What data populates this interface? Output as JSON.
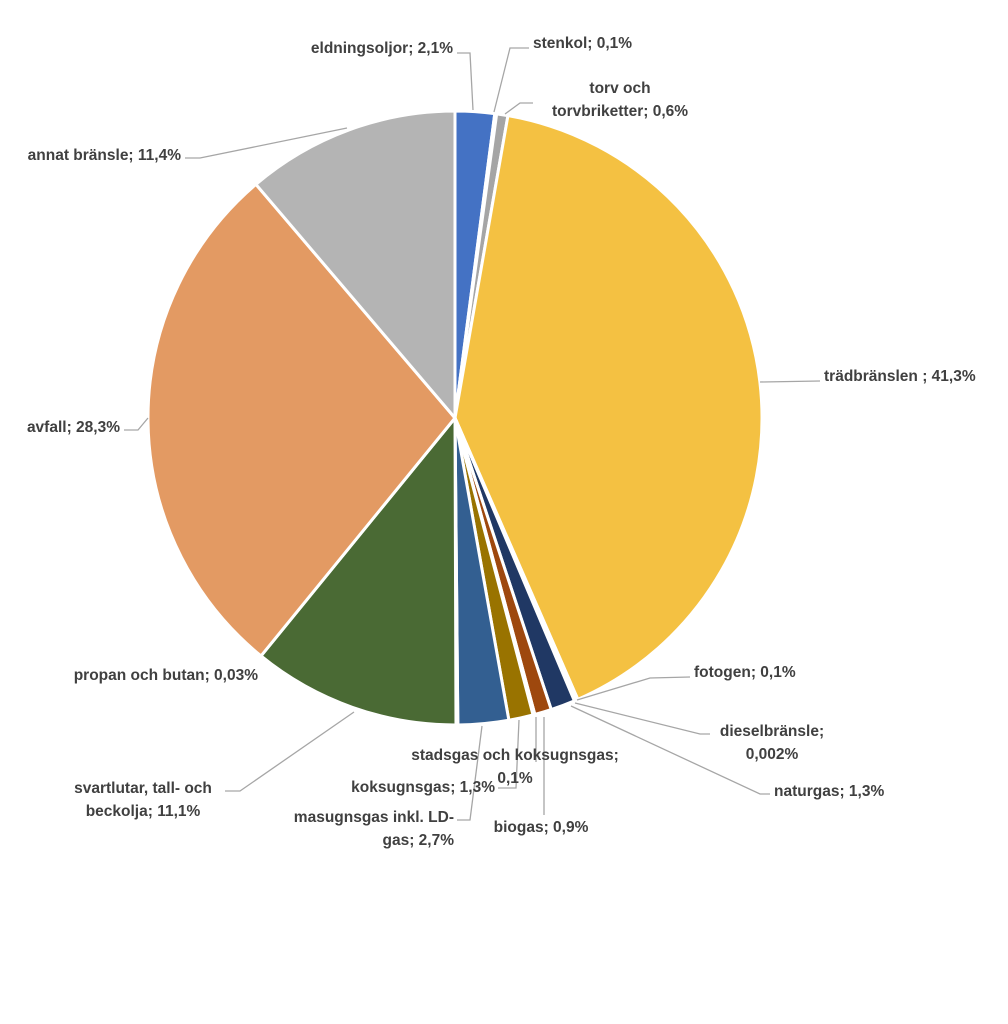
{
  "chart_data": {
    "type": "pie",
    "title": "",
    "slices": [
      {
        "label": "eldningsoljor; 2,1%",
        "value": 2.1,
        "color": "#4472c4"
      },
      {
        "label": "stenkol; 0,1%",
        "value": 0.1,
        "color": "#264478"
      },
      {
        "label": "torv och torvbriketter; 0,6%",
        "value": 0.6,
        "color": "#a5a5a5"
      },
      {
        "label": "trädbränslen ; 41,3%",
        "value": 41.3,
        "color": "#f4c142"
      },
      {
        "label": "fotogen; 0,1%",
        "value": 0.1,
        "color": "#5b9bd5"
      },
      {
        "label": "dieselbränsle; 0,002%",
        "value": 0.002,
        "color": "#70ad47"
      },
      {
        "label": "naturgas; 1,3%",
        "value": 1.3,
        "color": "#203864"
      },
      {
        "label": "biogas; 0,9%",
        "value": 0.9,
        "color": "#9e480e"
      },
      {
        "label": "stadsgas och koksugnsgas; 0,1%",
        "value": 0.1,
        "color": "#636363"
      },
      {
        "label": "koksugnsgas; 1,3%",
        "value": 1.3,
        "color": "#997300"
      },
      {
        "label": "masugnsgas inkl. LD-gas; 2,7%",
        "value": 2.7,
        "color": "#335f91"
      },
      {
        "label": "propan och butan; 0,03%",
        "value": 0.03,
        "color": "#2e75b6"
      },
      {
        "label": "svartlutar, tall- och beckolja; 11,1%",
        "value": 11.1,
        "color": "#4a6a34"
      },
      {
        "label": "avfall; 28,3%",
        "value": 28.3,
        "color": "#e39a63"
      },
      {
        "label": "annat bränsle; 11,4%",
        "value": 11.4,
        "color": "#b4b4b4"
      }
    ],
    "labels_display": [
      {
        "lines": [
          "eldningsoljor; 2,1%"
        ]
      },
      {
        "lines": [
          "stenkol; 0,1%"
        ]
      },
      {
        "lines": [
          "torv och",
          "torvbriketter; 0,6%"
        ]
      },
      {
        "lines": [
          "trädbränslen ; 41,3%"
        ]
      },
      {
        "lines": [
          "fotogen; 0,1%"
        ]
      },
      {
        "lines": [
          "dieselbränsle;",
          "0,002%"
        ]
      },
      {
        "lines": [
          "naturgas; 1,3%"
        ]
      },
      {
        "lines": [
          "biogas; 0,9%"
        ]
      },
      {
        "lines": [
          "stadsgas och koksugnsgas;",
          "0,1%"
        ]
      },
      {
        "lines": [
          "koksugnsgas; 1,3%"
        ]
      },
      {
        "lines": [
          "masugnsgas inkl. LD-",
          "gas; 2,7%"
        ]
      },
      {
        "lines": [
          "propan och butan; 0,03%"
        ]
      },
      {
        "lines": [
          "svartlutar, tall- och",
          "beckolja; 11,1%"
        ]
      },
      {
        "lines": [
          "avfall; 28,3%"
        ]
      },
      {
        "lines": [
          "annat bränsle; 11,4%"
        ]
      }
    ]
  }
}
